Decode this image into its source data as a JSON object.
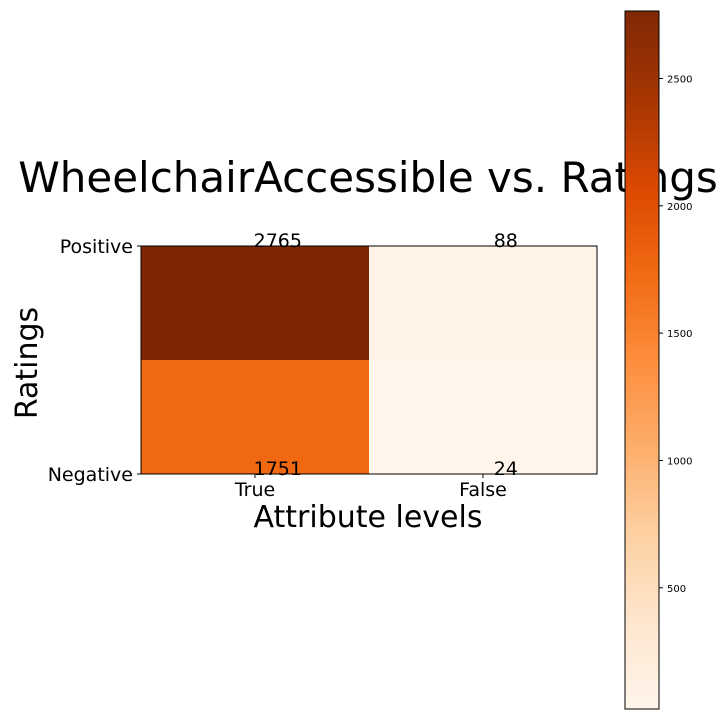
{
  "chart_data": {
    "type": "heatmap",
    "title": "WheelchairAccessible vs. Ratings",
    "xlabel": "Attribute levels",
    "ylabel": "Ratings",
    "x_categories": [
      "True",
      "False"
    ],
    "y_categories": [
      "Positive",
      "Negative"
    ],
    "values": [
      [
        2765,
        88
      ],
      [
        1751,
        24
      ]
    ],
    "colormap": "Oranges",
    "colorbar": {
      "range": [
        24,
        2765
      ],
      "ticks": [
        500,
        1000,
        1500,
        2000,
        2500
      ],
      "tick_labels": [
        "500",
        "1000",
        "1500",
        "2000",
        "2500"
      ]
    }
  }
}
